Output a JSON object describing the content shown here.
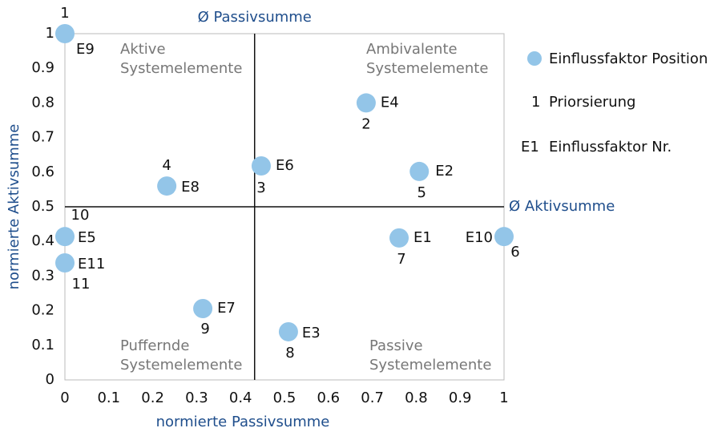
{
  "chart_data": {
    "type": "scatter",
    "xlabel": "normierte Passivsumme",
    "ylabel": "normierte Aktivsumme",
    "xlim": [
      0,
      1
    ],
    "ylim": [
      0,
      1
    ],
    "xticks": [
      0,
      0.1,
      0.2,
      0.3,
      0.4,
      0.5,
      0.6,
      0.7,
      0.8,
      0.9,
      1
    ],
    "yticks": [
      0,
      0.1,
      0.2,
      0.3,
      0.4,
      0.5,
      0.6,
      0.7,
      0.8,
      0.9,
      1
    ],
    "series": [
      {
        "name": "Einflussfaktor Position",
        "color": "#93c5e8",
        "labels": [
          "E9",
          "E4",
          "E6",
          "E8",
          "E2",
          "E10",
          "E1",
          "E3",
          "E7",
          "E5",
          "E11"
        ],
        "priority": [
          1,
          2,
          3,
          4,
          5,
          6,
          7,
          8,
          9,
          10,
          11
        ],
        "x": [
          0,
          0.686,
          0.447,
          0.232,
          0.807,
          1.0,
          0.761,
          0.509,
          0.314,
          0,
          0
        ],
        "values": [
          1.0,
          0.8,
          0.618,
          0.56,
          0.602,
          0.414,
          0.41,
          0.139,
          0.206,
          0.414,
          0.338
        ]
      }
    ],
    "mean_x": {
      "value": 0.432,
      "label": "Ø Passivsumme"
    },
    "mean_y": {
      "value": 0.5,
      "label": "Ø Aktivsumme"
    },
    "quadrants": [
      {
        "lines": [
          "Aktive",
          "Systemelemente"
        ]
      },
      {
        "lines": [
          "Ambivalente",
          "Systemelemente"
        ]
      },
      {
        "lines": [
          "Puffernde",
          "Systemelemente"
        ]
      },
      {
        "lines": [
          "Passive",
          "Systemelemente"
        ]
      }
    ],
    "legend_notes": [
      {
        "symbol": "1",
        "label": "Priorsierung"
      },
      {
        "symbol": "E1",
        "label": "Einflussfaktor Nr."
      }
    ]
  }
}
